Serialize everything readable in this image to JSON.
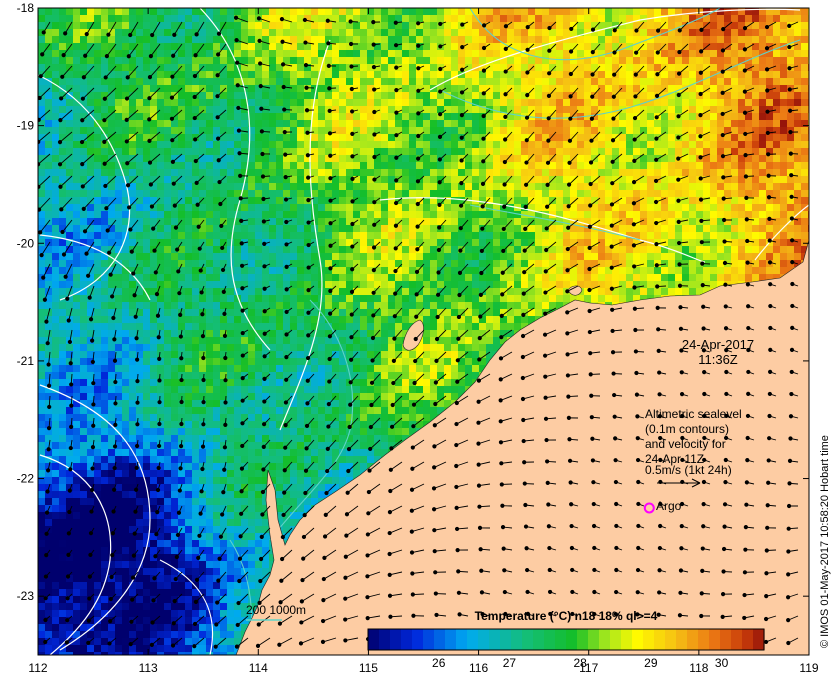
{
  "map": {
    "lon_ticks": [
      "112",
      "113",
      "114",
      "115",
      "116",
      "117",
      "118",
      "119"
    ],
    "lat_ticks": [
      "-18",
      "-19",
      "-20",
      "-21",
      "-22",
      "-23"
    ],
    "lon_range": [
      112,
      119
    ],
    "lat_range": [
      -18,
      -23.5
    ],
    "date_line1": "24-Apr-2017",
    "date_line2": "11:36Z",
    "legend_lines": [
      "Altimetric sealevel",
      "(0.1m contours)",
      "and velocity for",
      "24-Apr 11Z",
      "0.5m/s (1kt 24h)"
    ],
    "argo_label": "Argo",
    "argo_lon": 117.55,
    "argo_lat": -22.25,
    "depth_label": "200  1000m",
    "colorbar_title": "Temperature (°C) n18 18% ql>=4",
    "colorbar_ticks": [
      "26",
      "27",
      "28",
      "29",
      "30"
    ],
    "colorbar_range": [
      25,
      30.6
    ],
    "credit": "© IMOS 01-May-2017 10:58:20 Hobart time",
    "colors": {
      "land": "#fdcca3",
      "contour": "#ffffff",
      "isobath": "#5fd3c8",
      "argo": "#ff00ff"
    }
  }
}
